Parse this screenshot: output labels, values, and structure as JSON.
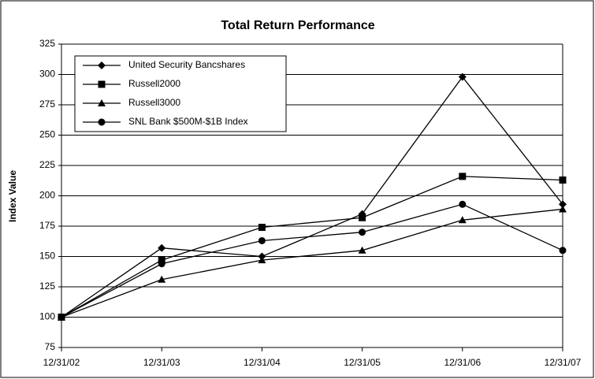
{
  "chart_data": {
    "type": "line",
    "title": "Total Return Performance",
    "y_label": "Index Value",
    "categories": [
      "12/31/02",
      "12/31/03",
      "12/31/04",
      "12/31/05",
      "12/31/06",
      "12/31/07"
    ],
    "series": [
      {
        "name": "United Security Bancshares",
        "color": "#000000",
        "marker": "diamond",
        "values": [
          100,
          157,
          150,
          185,
          298,
          193
        ]
      },
      {
        "name": "Russell2000",
        "color": "#000000",
        "marker": "square",
        "values": [
          100,
          147,
          174,
          182,
          216,
          213
        ]
      },
      {
        "name": "Russell3000",
        "color": "#000000",
        "marker": "triangle",
        "values": [
          100,
          131,
          147,
          155,
          180,
          189
        ]
      },
      {
        "name": "SNL Bank $500M-$1B Index",
        "color": "#000000",
        "marker": "circle",
        "values": [
          100,
          144,
          163,
          170,
          193,
          155
        ]
      }
    ],
    "ylim": [
      75,
      325
    ],
    "yticks": [
      75,
      100,
      125,
      150,
      175,
      200,
      225,
      250,
      275,
      300,
      325
    ],
    "grid": true,
    "legend": "top-left"
  }
}
